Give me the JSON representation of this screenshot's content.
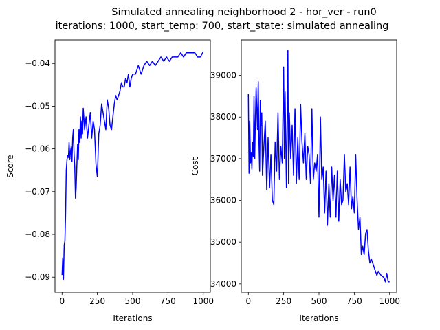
{
  "figure": {
    "title_line1": "Simulated annealing neighborhood 2 - hor_ver - run0",
    "title_line2": "iterations: 1000, start_temp: 700, start_state: simulated annealing"
  },
  "chart_data": [
    {
      "type": "line",
      "xlabel": "Iterations",
      "ylabel": "Score",
      "xlim": [
        -50,
        1050
      ],
      "ylim": [
        -0.0935,
        -0.0345
      ],
      "xticks": [
        0,
        250,
        500,
        750,
        1000
      ],
      "yticks": [
        -0.09,
        -0.08,
        -0.07,
        -0.06,
        -0.05,
        -0.04
      ],
      "ytick_labels": [
        "−0.09",
        "−0.08",
        "−0.07",
        "−0.06",
        "−0.05",
        "−0.04"
      ],
      "grid": false,
      "color": "#0000ff",
      "series": [
        {
          "x": [
            0,
            5,
            10,
            15,
            20,
            25,
            30,
            35,
            40,
            45,
            50,
            55,
            60,
            65,
            70,
            75,
            80,
            85,
            90,
            95,
            100,
            105,
            110,
            115,
            120,
            125,
            130,
            135,
            140,
            145,
            150,
            160,
            170,
            180,
            190,
            200,
            210,
            220,
            230,
            240,
            250,
            260,
            270,
            280,
            290,
            300,
            310,
            320,
            330,
            340,
            350,
            360,
            370,
            380,
            390,
            400,
            410,
            420,
            430,
            440,
            450,
            460,
            470,
            480,
            490,
            500,
            520,
            540,
            560,
            580,
            600,
            620,
            640,
            660,
            680,
            700,
            720,
            740,
            760,
            780,
            800,
            820,
            840,
            860,
            880,
            900,
            920,
            940,
            960,
            980,
            1000
          ],
          "y": [
            -0.0895,
            -0.0855,
            -0.0905,
            -0.0825,
            -0.0815,
            -0.0755,
            -0.065,
            -0.0625,
            -0.0615,
            -0.062,
            -0.0585,
            -0.0625,
            -0.0605,
            -0.0595,
            -0.063,
            -0.0575,
            -0.0555,
            -0.061,
            -0.0645,
            -0.0715,
            -0.069,
            -0.064,
            -0.059,
            -0.0625,
            -0.0555,
            -0.0585,
            -0.0525,
            -0.0575,
            -0.0535,
            -0.0565,
            -0.0505,
            -0.0555,
            -0.0525,
            -0.0575,
            -0.0545,
            -0.0515,
            -0.0575,
            -0.0535,
            -0.0555,
            -0.0635,
            -0.0665,
            -0.0565,
            -0.0545,
            -0.0495,
            -0.0515,
            -0.0535,
            -0.0555,
            -0.0485,
            -0.0505,
            -0.0545,
            -0.0555,
            -0.0525,
            -0.0495,
            -0.0475,
            -0.0485,
            -0.0475,
            -0.0465,
            -0.0445,
            -0.0455,
            -0.0455,
            -0.0435,
            -0.0445,
            -0.0425,
            -0.0455,
            -0.0435,
            -0.0425,
            -0.0425,
            -0.0405,
            -0.0425,
            -0.0405,
            -0.0395,
            -0.0405,
            -0.0395,
            -0.0405,
            -0.0395,
            -0.0385,
            -0.0395,
            -0.0385,
            -0.0395,
            -0.0385,
            -0.0385,
            -0.0385,
            -0.0375,
            -0.0385,
            -0.0375,
            -0.0375,
            -0.0375,
            -0.0375,
            -0.0385,
            -0.0385,
            -0.0372
          ]
        }
      ]
    },
    {
      "type": "line",
      "xlabel": "Iterations",
      "ylabel": "Cost",
      "xlim": [
        -50,
        1050
      ],
      "ylim": [
        33800,
        39850
      ],
      "xticks": [
        0,
        250,
        500,
        750,
        1000
      ],
      "yticks": [
        34000,
        35000,
        36000,
        37000,
        38000,
        39000
      ],
      "ytick_labels": [
        "34000",
        "35000",
        "36000",
        "37000",
        "38000",
        "39000"
      ],
      "grid": false,
      "color": "#0000ff",
      "series": [
        {
          "x": [
            0,
            5,
            10,
            15,
            20,
            25,
            30,
            35,
            40,
            45,
            50,
            55,
            60,
            65,
            70,
            75,
            80,
            85,
            90,
            95,
            100,
            110,
            120,
            130,
            140,
            150,
            160,
            170,
            180,
            190,
            200,
            210,
            220,
            230,
            240,
            250,
            255,
            260,
            270,
            280,
            285,
            290,
            300,
            310,
            320,
            330,
            340,
            350,
            360,
            370,
            380,
            390,
            400,
            410,
            420,
            430,
            440,
            450,
            460,
            470,
            480,
            490,
            500,
            510,
            520,
            530,
            540,
            550,
            560,
            570,
            580,
            590,
            600,
            610,
            620,
            630,
            640,
            650,
            660,
            670,
            680,
            690,
            700,
            710,
            720,
            730,
            740,
            750,
            760,
            770,
            780,
            790,
            800,
            810,
            820,
            830,
            840,
            850,
            860,
            870,
            880,
            890,
            900,
            910,
            920,
            940,
            960,
            970,
            980,
            990,
            1000
          ],
          "y": [
            38550,
            36650,
            37900,
            36900,
            37150,
            36750,
            37400,
            37050,
            38500,
            37000,
            37900,
            38700,
            38200,
            37700,
            38850,
            37400,
            36700,
            38400,
            37800,
            38100,
            36600,
            37300,
            37900,
            36250,
            37500,
            36300,
            37100,
            36000,
            35900,
            37400,
            36700,
            38100,
            36500,
            37300,
            36900,
            39200,
            37000,
            38600,
            36300,
            39600,
            36400,
            38100,
            37000,
            37800,
            36600,
            38200,
            36400,
            37500,
            36500,
            38300,
            37400,
            36900,
            37600,
            36500,
            37300,
            37100,
            36400,
            38200,
            36500,
            36900,
            36700,
            37100,
            35600,
            38000,
            36500,
            36800,
            35700,
            36700,
            35400,
            36400,
            35600,
            36800,
            36000,
            36600,
            35600,
            36700,
            35500,
            36500,
            35900,
            36000,
            37100,
            36200,
            36400,
            35900,
            36800,
            35800,
            36100,
            35700,
            37100,
            36000,
            35300,
            35600,
            34700,
            34900,
            34700,
            35200,
            35300,
            34800,
            34500,
            34600,
            34500,
            34400,
            34300,
            34200,
            34300,
            34200,
            34150,
            34050,
            34250,
            34050,
            34050
          ]
        }
      ]
    }
  ]
}
